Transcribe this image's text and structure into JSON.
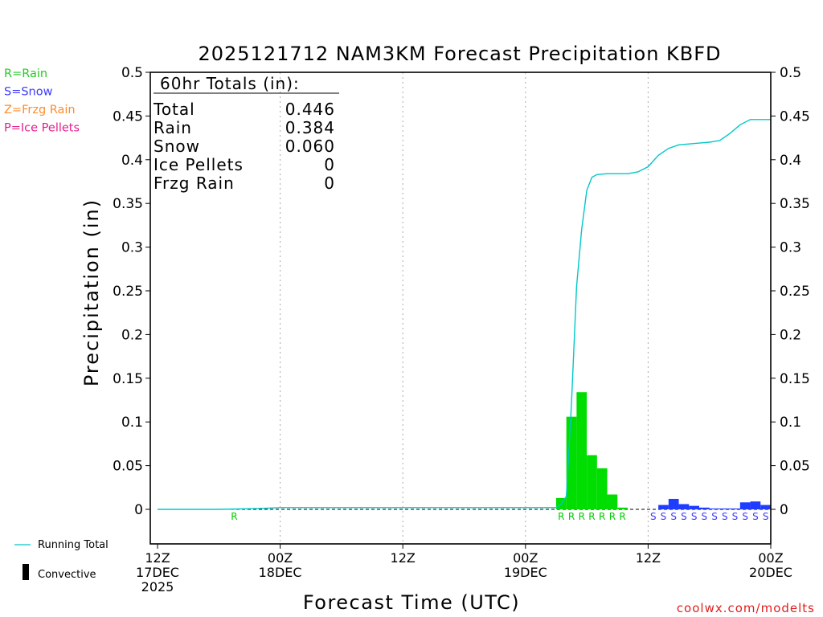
{
  "chart_data": {
    "type": "bar",
    "title": "2025121712 NAM3KM Forecast Precipitation KBFD",
    "xlabel": "Forecast Time (UTC)",
    "ylabel": "Precipitation (in)",
    "ylim": [
      -0.04,
      0.5
    ],
    "yticks": [
      0,
      0.05,
      0.1,
      0.15,
      0.2,
      0.25,
      0.3,
      0.35,
      0.4,
      0.45,
      0.5
    ],
    "ytick_labels": [
      "0",
      "0.05",
      "0.1",
      "0.15",
      "0.2",
      "0.25",
      "0.3",
      "0.35",
      "0.4",
      "0.45",
      "0.5"
    ],
    "xlim": [
      0,
      60
    ],
    "xticks": [
      {
        "h": 0,
        "lines": [
          "12Z",
          "17DEC",
          "2025"
        ]
      },
      {
        "h": 12,
        "lines": [
          "00Z",
          "18DEC"
        ]
      },
      {
        "h": 24,
        "lines": [
          "12Z"
        ]
      },
      {
        "h": 36,
        "lines": [
          "00Z",
          "19DEC"
        ]
      },
      {
        "h": 48,
        "lines": [
          "12Z"
        ]
      },
      {
        "h": 60,
        "lines": [
          "00Z",
          "20DEC"
        ]
      }
    ],
    "grid_hours": [
      12,
      24,
      36,
      48
    ],
    "series": [
      {
        "name": "Rain",
        "color": "#00dd00",
        "x": [
          39.5,
          40.5,
          41.5,
          42.5,
          43.5,
          44.5,
          45.5
        ],
        "values": [
          0.013,
          0.106,
          0.134,
          0.062,
          0.047,
          0.017,
          0.002
        ]
      },
      {
        "name": "Snow",
        "color": "#1f3cff",
        "x": [
          49.5,
          50.5,
          51.5,
          52.5,
          53.5,
          54.5,
          55.5,
          56.5,
          57.5,
          58.5,
          59.5
        ],
        "values": [
          0.005,
          0.012,
          0.006,
          0.004,
          0.002,
          0.001,
          0.001,
          0.001,
          0.008,
          0.009,
          0.005
        ]
      },
      {
        "name": "Running Total",
        "type": "line",
        "color": "#00c8c8",
        "x": [
          0,
          6,
          10,
          12,
          20,
          30,
          39,
          39.5,
          40,
          40.5,
          41,
          41.5,
          42,
          42.5,
          43,
          44,
          45,
          46,
          47,
          48,
          49,
          50,
          51,
          52,
          53,
          54,
          55,
          56,
          57,
          58,
          59,
          60
        ],
        "values": [
          0,
          0,
          0.001,
          0.002,
          0.002,
          0.002,
          0.002,
          0.006,
          0.015,
          0.12,
          0.255,
          0.32,
          0.365,
          0.38,
          0.383,
          0.384,
          0.384,
          0.384,
          0.386,
          0.392,
          0.405,
          0.413,
          0.417,
          0.418,
          0.419,
          0.42,
          0.422,
          0.43,
          0.44,
          0.446,
          0.446,
          0.446
        ]
      }
    ],
    "ptype_markers": [
      {
        "h": 7.5,
        "letter": "R",
        "color": "#00cc00"
      },
      {
        "h": 39.5,
        "letter": "R",
        "color": "#00cc00"
      },
      {
        "h": 40.5,
        "letter": "R",
        "color": "#00cc00"
      },
      {
        "h": 41.5,
        "letter": "R",
        "color": "#00cc00"
      },
      {
        "h": 42.5,
        "letter": "R",
        "color": "#00cc00"
      },
      {
        "h": 43.5,
        "letter": "R",
        "color": "#00cc00"
      },
      {
        "h": 44.5,
        "letter": "R",
        "color": "#00cc00"
      },
      {
        "h": 45.5,
        "letter": "R",
        "color": "#00cc00"
      },
      {
        "h": 48.5,
        "letter": "S",
        "color": "#3a3aff"
      },
      {
        "h": 49.5,
        "letter": "S",
        "color": "#3a3aff"
      },
      {
        "h": 50.5,
        "letter": "S",
        "color": "#3a3aff"
      },
      {
        "h": 51.5,
        "letter": "S",
        "color": "#3a3aff"
      },
      {
        "h": 52.5,
        "letter": "S",
        "color": "#3a3aff"
      },
      {
        "h": 53.5,
        "letter": "S",
        "color": "#3a3aff"
      },
      {
        "h": 54.5,
        "letter": "S",
        "color": "#3a3aff"
      },
      {
        "h": 55.5,
        "letter": "S",
        "color": "#3a3aff"
      },
      {
        "h": 56.5,
        "letter": "S",
        "color": "#3a3aff"
      },
      {
        "h": 57.5,
        "letter": "S",
        "color": "#3a3aff"
      },
      {
        "h": 58.5,
        "letter": "S",
        "color": "#3a3aff"
      },
      {
        "h": 59.5,
        "letter": "S",
        "color": "#3a3aff"
      }
    ],
    "totals": {
      "header": "60hr Totals (in):",
      "rows": [
        {
          "label": "Total",
          "value": "0.446"
        },
        {
          "label": "Rain",
          "value": "0.384"
        },
        {
          "label": "Snow",
          "value": "0.060"
        },
        {
          "label": "Ice Pellets",
          "value": "0"
        },
        {
          "label": "Frzg Rain",
          "value": "0"
        }
      ]
    },
    "legend": [
      {
        "text": "R=Rain",
        "color": "#22cc22"
      },
      {
        "text": "S=Snow",
        "color": "#3a3aff"
      },
      {
        "text": "Z=Frzg Rain",
        "color": "#ff8c28"
      },
      {
        "text": "P=Ice Pellets",
        "color": "#e61e8c"
      }
    ],
    "bottom_legend": {
      "running_total": "Running Total",
      "running_total_color": "#00c8c8",
      "convective": "Convective"
    },
    "credit": "coolwx.com/modelts",
    "credit_color": "#e02020"
  }
}
